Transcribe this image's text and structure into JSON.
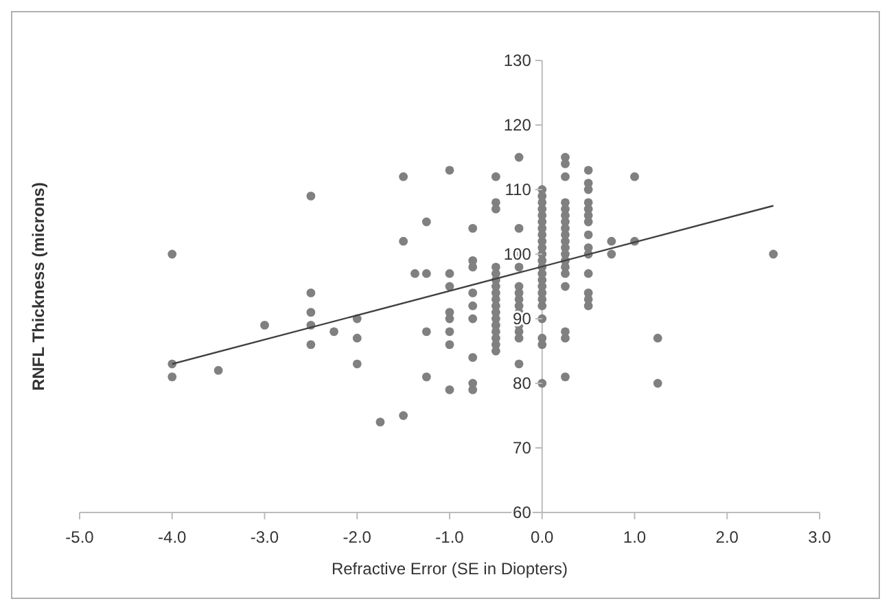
{
  "chart_data": {
    "type": "scatter",
    "xlabel": "Refractive Error (SE in Diopters)",
    "ylabel": "RNFL Thickness (microns)",
    "xlim": [
      -5,
      3
    ],
    "xticks": [
      {
        "value": -5,
        "label": "-5.0"
      },
      {
        "value": -4,
        "label": "-4.0"
      },
      {
        "value": -3,
        "label": "-3.0"
      },
      {
        "value": -2,
        "label": "-2.0"
      },
      {
        "value": -1,
        "label": "-1.0"
      },
      {
        "value": 0,
        "label": "0.0"
      },
      {
        "value": 1,
        "label": "1.0"
      },
      {
        "value": 2,
        "label": "2.0"
      },
      {
        "value": 3,
        "label": "3.0"
      }
    ],
    "ylim": [
      60,
      130
    ],
    "yticks": [
      60,
      70,
      80,
      90,
      100,
      110,
      120,
      130
    ],
    "grid": false,
    "series": [
      {
        "marker": "circle",
        "color": "#808080",
        "x": [
          -4,
          -4,
          -4,
          -3.5,
          -3,
          -2.5,
          -2.5,
          -2.5,
          -2.5,
          -2.5,
          -2.25,
          -2,
          -2,
          -2,
          -1.75,
          -1.5,
          -1.5,
          -1.5,
          -1.375,
          -1.25,
          -1.25,
          -1.25,
          -1.25,
          -1,
          -1,
          -1,
          -1,
          -1,
          -1,
          -1,
          -1,
          -0.75,
          -0.75,
          -0.75,
          -0.75,
          -0.75,
          -0.75,
          -0.75,
          -0.75,
          -0.75,
          -0.5,
          -0.5,
          -0.5,
          -0.5,
          -0.5,
          -0.5,
          -0.5,
          -0.5,
          -0.5,
          -0.5,
          -0.5,
          -0.5,
          -0.5,
          -0.5,
          -0.5,
          -0.5,
          -0.5,
          -0.25,
          -0.25,
          -0.25,
          -0.25,
          -0.25,
          -0.25,
          -0.25,
          -0.25,
          -0.25,
          -0.25,
          -0.25,
          -0.25,
          -0.25,
          0,
          0,
          0,
          0,
          0,
          0,
          0,
          0,
          0,
          0,
          0,
          0,
          0,
          0,
          0,
          0,
          0,
          0,
          0,
          0,
          0,
          0,
          0,
          0.25,
          0.25,
          0.25,
          0.25,
          0.25,
          0.25,
          0.25,
          0.25,
          0.25,
          0.25,
          0.25,
          0.25,
          0.25,
          0.25,
          0.25,
          0.25,
          0.25,
          0.25,
          0.25,
          0.5,
          0.5,
          0.5,
          0.5,
          0.5,
          0.5,
          0.5,
          0.5,
          0.5,
          0.5,
          0.5,
          0.5,
          0.5,
          0.5,
          0.75,
          0.75,
          1,
          1,
          1.25,
          1.25,
          2.5
        ],
        "values": [
          100,
          83,
          81,
          82,
          89,
          109,
          94,
          91,
          89,
          86,
          88,
          90,
          87,
          83,
          74,
          112,
          102,
          75,
          97,
          105,
          97,
          88,
          81,
          113,
          97,
          95,
          91,
          90,
          88,
          86,
          79,
          104,
          99,
          98,
          94,
          92,
          90,
          84,
          80,
          79,
          112,
          108,
          107,
          98,
          97,
          96,
          95,
          94,
          93,
          92,
          91,
          90,
          89,
          88,
          87,
          86,
          85,
          115,
          104,
          100,
          98,
          95,
          94,
          93,
          92,
          91,
          89,
          88,
          87,
          83,
          110,
          109,
          108,
          107,
          106,
          105,
          104,
          103,
          102,
          101,
          100,
          99,
          98,
          97,
          96,
          95,
          94,
          93,
          92,
          90,
          87,
          86,
          80,
          115,
          114,
          112,
          108,
          107,
          106,
          105,
          104,
          103,
          102,
          101,
          100,
          99,
          98,
          97,
          95,
          88,
          87,
          81,
          113,
          111,
          110,
          108,
          107,
          106,
          105,
          103,
          101,
          100,
          97,
          94,
          93,
          92,
          102,
          100,
          112,
          102,
          87,
          80,
          100
        ]
      },
      {
        "type": "line",
        "color": "#404040",
        "x": [
          -4,
          2.5
        ],
        "values": [
          83,
          107.5
        ],
        "marker": "none"
      }
    ]
  }
}
